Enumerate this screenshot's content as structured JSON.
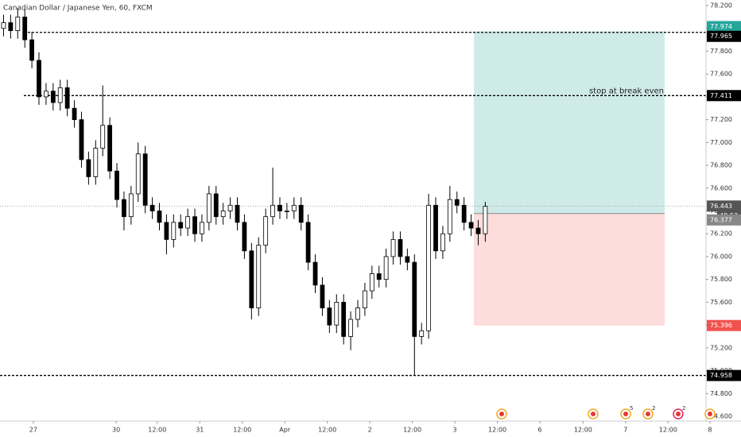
{
  "chart_data": {
    "type": "candlestick",
    "title": "Canadian Dollar / Japanese Yen, 60, FXCM",
    "open": [
      78.0,
      78.05,
      77.98,
      78.1,
      77.9,
      77.72,
      77.4,
      77.45,
      77.35,
      77.48,
      77.3,
      77.2,
      76.85,
      76.7,
      76.95,
      77.15,
      76.75,
      76.5,
      76.35,
      76.55,
      76.9,
      76.45,
      76.4,
      76.3,
      76.15,
      76.3,
      76.25,
      76.35,
      76.2,
      76.3,
      76.55,
      76.35,
      76.4,
      76.45,
      76.3,
      76.05,
      75.55,
      76.1,
      76.35,
      76.45,
      76.4,
      76.4,
      76.45,
      76.3,
      75.95,
      75.75,
      75.55,
      75.4,
      75.6,
      75.3,
      75.45,
      75.55,
      75.7,
      75.85,
      75.8,
      76.0,
      76.15,
      76.0,
      75.95,
      75.3,
      75.35,
      76.45,
      76.05,
      76.2,
      76.5,
      76.45,
      76.3,
      76.25,
      76.2
    ],
    "high": [
      78.12,
      78.12,
      78.18,
      78.17,
      77.97,
      77.79,
      77.52,
      77.52,
      77.55,
      77.55,
      77.37,
      77.27,
      76.92,
      77.02,
      77.5,
      77.22,
      76.82,
      76.57,
      76.62,
      77.0,
      76.97,
      76.52,
      76.47,
      76.37,
      76.37,
      76.37,
      76.42,
      76.42,
      76.37,
      76.62,
      76.62,
      76.47,
      76.52,
      76.52,
      76.37,
      76.12,
      76.17,
      76.42,
      76.78,
      76.52,
      76.47,
      76.52,
      76.52,
      76.37,
      76.02,
      75.82,
      75.62,
      75.67,
      75.67,
      75.52,
      75.62,
      75.77,
      75.92,
      75.92,
      76.07,
      76.22,
      76.22,
      76.07,
      76.02,
      75.42,
      76.55,
      76.52,
      76.27,
      76.62,
      76.57,
      76.52,
      76.37,
      76.32,
      76.48
    ],
    "low": [
      77.93,
      77.91,
      77.91,
      77.83,
      77.65,
      77.33,
      77.33,
      77.28,
      77.28,
      77.23,
      77.13,
      76.78,
      76.63,
      76.63,
      76.88,
      76.68,
      76.43,
      76.23,
      76.28,
      76.48,
      76.38,
      76.33,
      76.23,
      76.02,
      76.08,
      76.18,
      76.18,
      76.13,
      76.13,
      76.23,
      76.28,
      76.28,
      76.33,
      76.23,
      75.98,
      75.45,
      75.48,
      76.03,
      76.28,
      76.33,
      76.33,
      76.33,
      76.23,
      75.88,
      75.68,
      75.48,
      75.33,
      75.33,
      75.23,
      75.18,
      75.38,
      75.48,
      75.63,
      75.73,
      75.73,
      75.93,
      75.93,
      75.88,
      74.96,
      75.23,
      75.28,
      75.98,
      75.98,
      76.13,
      76.38,
      76.23,
      76.18,
      76.1,
      76.13
    ],
    "close": [
      78.05,
      77.98,
      78.1,
      77.9,
      77.72,
      77.4,
      77.45,
      77.35,
      77.48,
      77.3,
      77.2,
      76.85,
      76.7,
      76.95,
      77.15,
      76.75,
      76.5,
      76.35,
      76.55,
      76.9,
      76.45,
      76.4,
      76.3,
      76.15,
      76.3,
      76.25,
      76.35,
      76.2,
      76.3,
      76.55,
      76.35,
      76.4,
      76.45,
      76.3,
      76.05,
      75.55,
      76.1,
      76.35,
      76.45,
      76.4,
      76.4,
      76.45,
      76.3,
      75.95,
      75.75,
      75.55,
      75.4,
      75.6,
      75.3,
      75.45,
      75.55,
      75.7,
      75.85,
      75.8,
      76.0,
      76.15,
      76.0,
      75.95,
      75.3,
      75.35,
      76.45,
      76.05,
      76.2,
      76.5,
      76.45,
      76.3,
      76.25,
      76.2,
      76.44
    ],
    "xlim": [
      -0.5,
      100.5
    ],
    "xticks": [
      {
        "value": 4.2,
        "label": "27"
      },
      {
        "value": 15.9,
        "label": "30"
      },
      {
        "value": 21.7,
        "label": "12:00"
      },
      {
        "value": 27.7,
        "label": "31"
      },
      {
        "value": 33.7,
        "label": "12:00"
      },
      {
        "value": 39.7,
        "label": "Apr"
      },
      {
        "value": 45.7,
        "label": "12:00"
      },
      {
        "value": 51.7,
        "label": "2"
      },
      {
        "value": 57.7,
        "label": "12:00"
      },
      {
        "value": 63.7,
        "label": "3"
      },
      {
        "value": 69.7,
        "label": "12:00"
      },
      {
        "value": 75.7,
        "label": "6"
      },
      {
        "value": 81.8,
        "label": "12:00"
      },
      {
        "value": 87.8,
        "label": "7"
      },
      {
        "value": 93.8,
        "label": "12:00"
      },
      {
        "value": 99.7,
        "label": "8"
      }
    ],
    "ylim": [
      74.6,
      78.2
    ],
    "yticks": [
      {
        "value": 78.2,
        "label": "78.200"
      },
      {
        "value": 78.0,
        "label": "78.000"
      },
      {
        "value": 77.8,
        "label": "77.800"
      },
      {
        "value": 77.6,
        "label": "77.600"
      },
      {
        "value": 77.4,
        "label": "77.400"
      },
      {
        "value": 77.2,
        "label": "77.200"
      },
      {
        "value": 77.0,
        "label": "77.000"
      },
      {
        "value": 76.8,
        "label": "76.800"
      },
      {
        "value": 76.6,
        "label": "76.600"
      },
      {
        "value": 76.4,
        "label": "76.400"
      },
      {
        "value": 76.2,
        "label": "76.200"
      },
      {
        "value": 76.0,
        "label": "76.000"
      },
      {
        "value": 75.8,
        "label": "75.800"
      },
      {
        "value": 75.6,
        "label": "75.600"
      },
      {
        "value": 75.4,
        "label": "75.400"
      },
      {
        "value": 75.2,
        "label": "75.200"
      },
      {
        "value": 75.0,
        "label": "75.000"
      },
      {
        "value": 74.8,
        "label": "74.800"
      },
      {
        "value": 74.6,
        "label": "74.600"
      }
    ],
    "up_color": "#ffffff",
    "down_color": "#000000",
    "horizontal_lines": [
      77.965,
      77.411,
      74.958
    ],
    "annotation": "stop at break even",
    "position": {
      "target": 77.974,
      "entry": 76.377,
      "stop": 75.396
    },
    "last_price": 76.443,
    "countdown": "48:53",
    "event_counts": [
      "5",
      "2",
      "2"
    ]
  }
}
